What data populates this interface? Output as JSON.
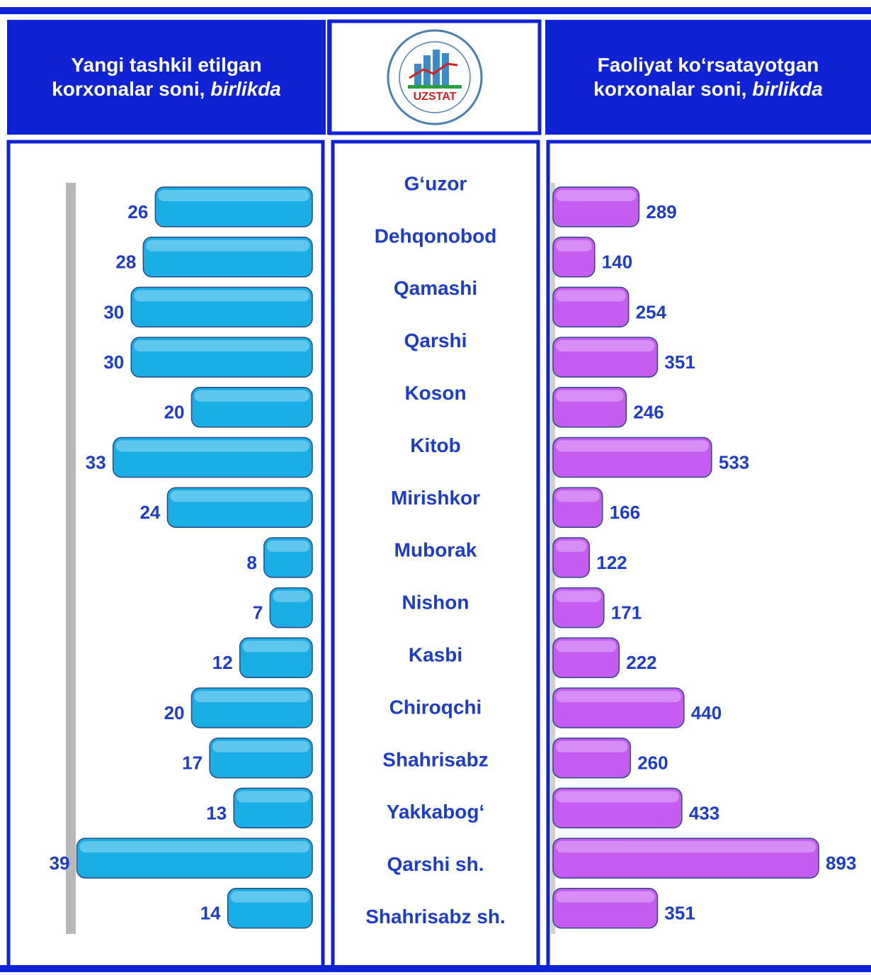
{
  "logo_text": "UZSTAT",
  "categories": [
    "G‘uzor",
    "Dehqonobod",
    "Qamashi",
    "Qarshi",
    "Koson",
    "Kitob",
    "Mirishkor",
    "Muborak",
    "Nishon",
    "Kasbi",
    "Chiroqchi",
    "Shahrisabz",
    "Yakkabog‘",
    "Qarshi sh.",
    "Shahrisabz sh."
  ],
  "chart_data": [
    {
      "type": "bar",
      "title": "Yangi tashkil etilgan korxonalar soni,",
      "unit": "birlikda",
      "values": [
        26,
        28,
        30,
        30,
        20,
        33,
        24,
        8,
        7,
        12,
        20,
        17,
        13,
        39,
        14
      ],
      "color": "#1aaee6",
      "xlim": [
        0,
        40
      ],
      "direction": "left"
    },
    {
      "type": "bar",
      "title": "Faoliyat ko‘rsatayotgan korxonalar soni,",
      "unit": "birlikda",
      "values": [
        289,
        140,
        254,
        351,
        246,
        533,
        166,
        122,
        171,
        222,
        440,
        260,
        433,
        893,
        351
      ],
      "color": "#c65cf2",
      "xlim": [
        0,
        1000
      ],
      "direction": "right"
    }
  ]
}
